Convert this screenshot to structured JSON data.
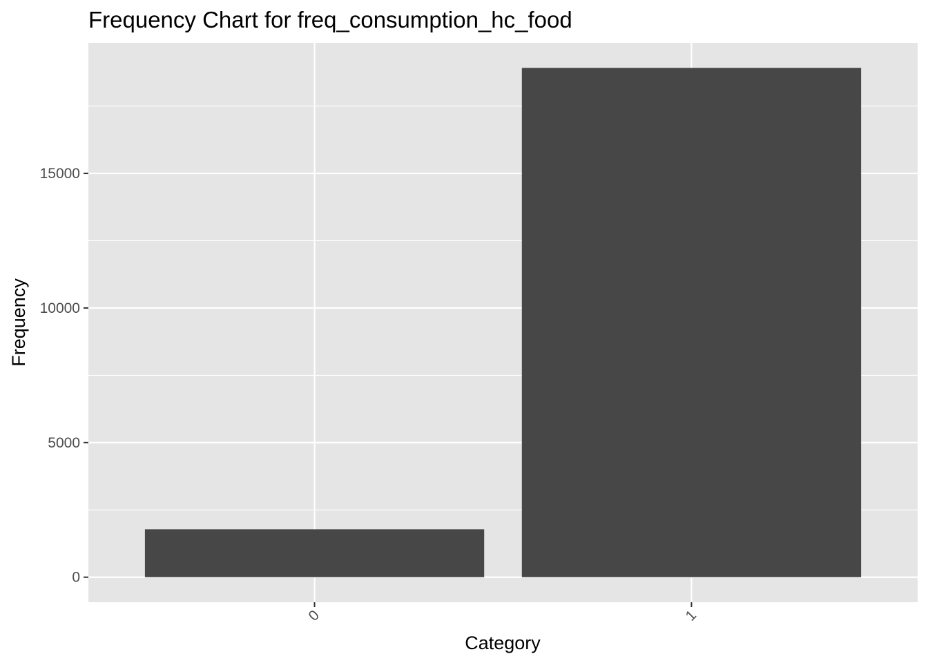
{
  "chart_data": {
    "type": "bar",
    "title": "Frequency Chart for freq_consumption_hc_food",
    "xlabel": "Category",
    "ylabel": "Frequency",
    "categories": [
      "0",
      "1"
    ],
    "values": [
      1780,
      18920
    ],
    "ylim": [
      -930,
      19850
    ],
    "yticks": [
      0,
      5000,
      10000,
      15000
    ],
    "yticks_minor": [
      2500,
      7500,
      12500,
      17500
    ],
    "grid": true,
    "x_tick_rotation_deg": 45,
    "colors": {
      "panel_background": "#e5e5e5",
      "grid": "#ffffff",
      "bar_fill": "#474747",
      "tick_mark": "#333333",
      "tick_label": "#4d4d4d"
    }
  }
}
